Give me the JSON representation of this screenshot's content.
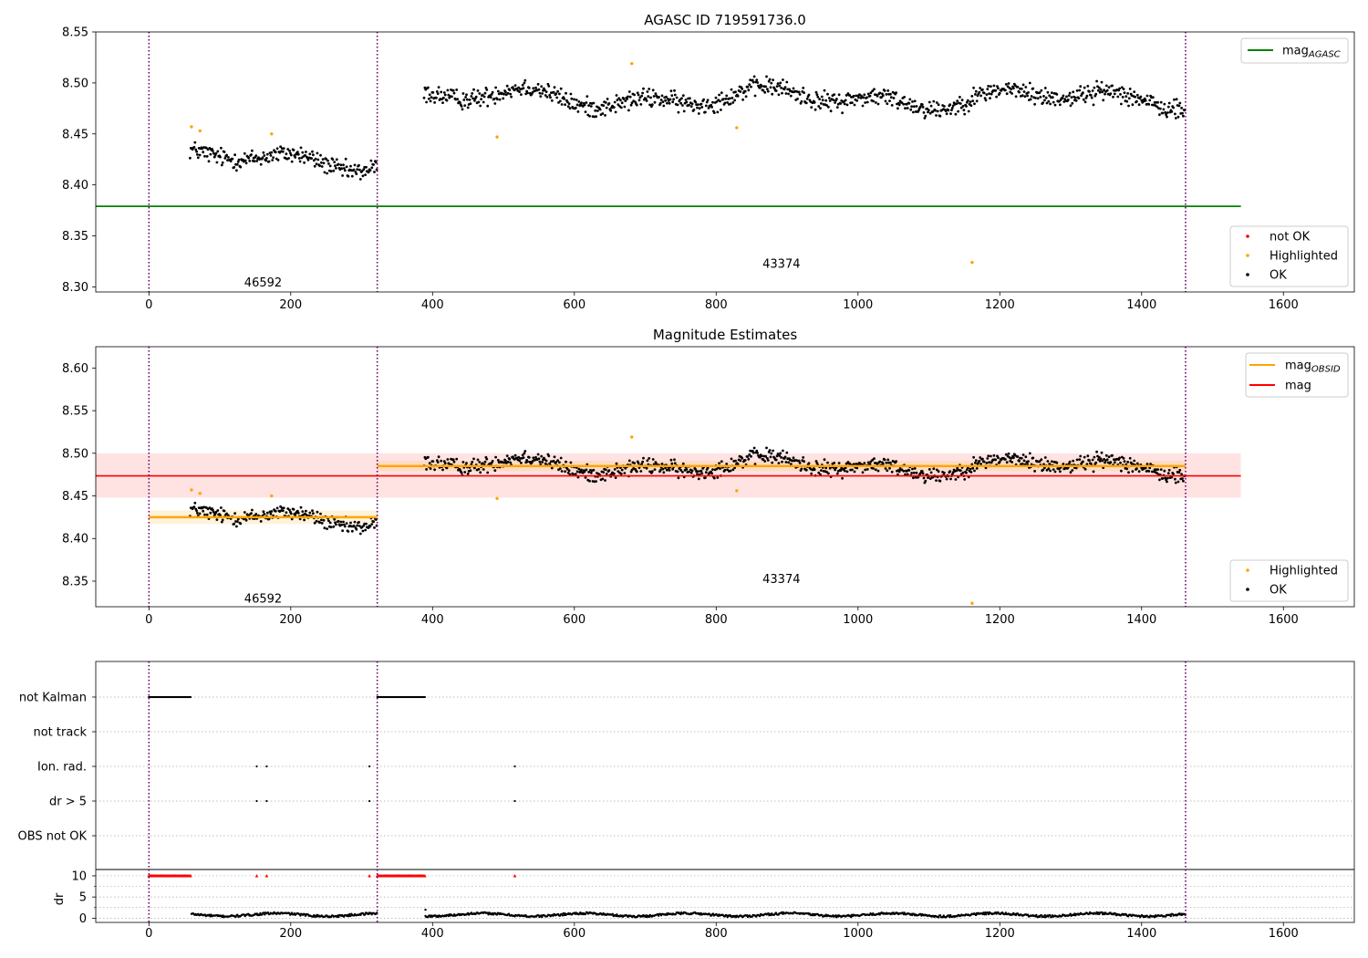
{
  "chart_data": [
    {
      "type": "scatter",
      "title": "AGASC ID 719591736.0",
      "xlim": [
        -75,
        1700
      ],
      "ylim": [
        8.295,
        8.55
      ],
      "x_ticks": [
        "0",
        "200",
        "400",
        "600",
        "800",
        "1000",
        "1200",
        "1400",
        "1600"
      ],
      "x_tick_values": [
        0,
        200,
        400,
        600,
        800,
        1000,
        1200,
        1400,
        1600
      ],
      "y_ticks": [
        "8.30",
        "8.35",
        "8.40",
        "8.45",
        "8.50",
        "8.55"
      ],
      "y_tick_values": [
        8.3,
        8.35,
        8.4,
        8.45,
        8.5,
        8.55
      ],
      "vlines": [
        0,
        322,
        1462
      ],
      "obsid_labels": [
        {
          "text": "46592",
          "x": 161,
          "y": 8.305
        },
        {
          "text": "43374",
          "x": 892,
          "y": 8.323
        }
      ],
      "mag_agasc": {
        "value": 8.379,
        "x_range": [
          -75,
          1540
        ]
      },
      "segments": [
        {
          "x_range": [
            58,
            322
          ],
          "mean": 8.425,
          "amplitude": 0.012,
          "noise": 0.007
        },
        {
          "x_range": [
            388,
            1462
          ],
          "mean": 8.485,
          "amplitude": 0.012,
          "noise": 0.007
        }
      ],
      "highlighted_points": [
        {
          "x": 60,
          "y": 8.457
        },
        {
          "x": 72,
          "y": 8.453
        },
        {
          "x": 173,
          "y": 8.45
        },
        {
          "x": 491,
          "y": 8.447
        },
        {
          "x": 681,
          "y": 8.519
        },
        {
          "x": 829,
          "y": 8.456
        },
        {
          "x": 1161,
          "y": 8.324
        }
      ],
      "legend_lines": [
        {
          "label": "mag",
          "sub": "AGASC",
          "color": "#008000"
        }
      ],
      "legend_markers": [
        {
          "label": "not OK",
          "color": "#ff0000"
        },
        {
          "label": "Highlighted",
          "color": "#ffa500"
        },
        {
          "label": "OK",
          "color": "#000000"
        }
      ],
      "legend_lines_position": "upper right",
      "legend_markers_position": "lower right"
    },
    {
      "type": "scatter",
      "title": "Magnitude Estimates",
      "xlim": [
        -75,
        1700
      ],
      "ylim": [
        8.32,
        8.625
      ],
      "x_ticks": [
        "0",
        "200",
        "400",
        "600",
        "800",
        "1000",
        "1200",
        "1400",
        "1600"
      ],
      "x_tick_values": [
        0,
        200,
        400,
        600,
        800,
        1000,
        1200,
        1400,
        1600
      ],
      "y_ticks": [
        "8.35",
        "8.40",
        "8.45",
        "8.50",
        "8.55",
        "8.60"
      ],
      "y_tick_values": [
        8.35,
        8.4,
        8.45,
        8.5,
        8.55,
        8.6
      ],
      "vlines": [
        0,
        322,
        1462
      ],
      "obsid_labels": [
        {
          "text": "46592",
          "x": 161,
          "y": 8.33
        },
        {
          "text": "43374",
          "x": 892,
          "y": 8.353
        }
      ],
      "mag": {
        "value": 8.4735,
        "band": [
          8.448,
          8.5
        ],
        "x_range": [
          -75,
          1540
        ]
      },
      "mag_obsid": [
        {
          "x_range": [
            0,
            322
          ],
          "value": 8.425,
          "band": [
            8.417,
            8.433
          ]
        },
        {
          "x_range": [
            322,
            1462
          ],
          "value": 8.485,
          "band": [
            8.479,
            8.491
          ]
        }
      ],
      "legend_lines": [
        {
          "label": "mag",
          "sub": "OBSID",
          "color": "#ffa500"
        },
        {
          "label": "mag",
          "sub": "",
          "color": "#ff0000"
        }
      ],
      "legend_markers": [
        {
          "label": "Highlighted",
          "color": "#ffa500"
        },
        {
          "label": "OK",
          "color": "#000000"
        }
      ],
      "legend_lines_position": "upper right",
      "legend_markers_position": "lower right"
    },
    {
      "type": "scatter",
      "title": "",
      "xlim": [
        -75,
        1700
      ],
      "x_ticks": [
        "0",
        "200",
        "400",
        "600",
        "800",
        "1000",
        "1200",
        "1400",
        "1600"
      ],
      "x_tick_values": [
        0,
        200,
        400,
        600,
        800,
        1000,
        1200,
        1400,
        1600
      ],
      "vlines": [
        0,
        322,
        1462
      ],
      "flag_rows": [
        "not Kalman",
        "not track",
        "Ion. rad.",
        "dr > 5",
        "OBS not OK"
      ],
      "flag_points": {
        "not Kalman": {
          "ranges": [
            [
              0,
              60
            ],
            [
              322,
              390
            ]
          ]
        },
        "not track": {
          "points": []
        },
        "Ion. rad.": {
          "points": [
            152,
            166,
            311,
            516
          ]
        },
        "dr > 5": {
          "points": [
            152,
            166,
            311,
            516
          ]
        },
        "OBS not OK": {
          "points": []
        }
      },
      "dr_ylabel": "dr",
      "dr_ylim": [
        -1,
        11.5
      ],
      "dr_ticks": [
        "0",
        "5",
        "10"
      ],
      "dr_tick_values": [
        0,
        5,
        10
      ],
      "dr_clip_ranges": [
        [
          0,
          60
        ],
        [
          322,
          390
        ]
      ],
      "dr_clip_points": [
        152,
        166,
        311,
        516
      ],
      "dr_segments": [
        {
          "x_range": [
            60,
            322
          ],
          "mean": 0.8
        },
        {
          "x_range": [
            390,
            1462
          ],
          "mean": 0.8
        }
      ]
    }
  ]
}
